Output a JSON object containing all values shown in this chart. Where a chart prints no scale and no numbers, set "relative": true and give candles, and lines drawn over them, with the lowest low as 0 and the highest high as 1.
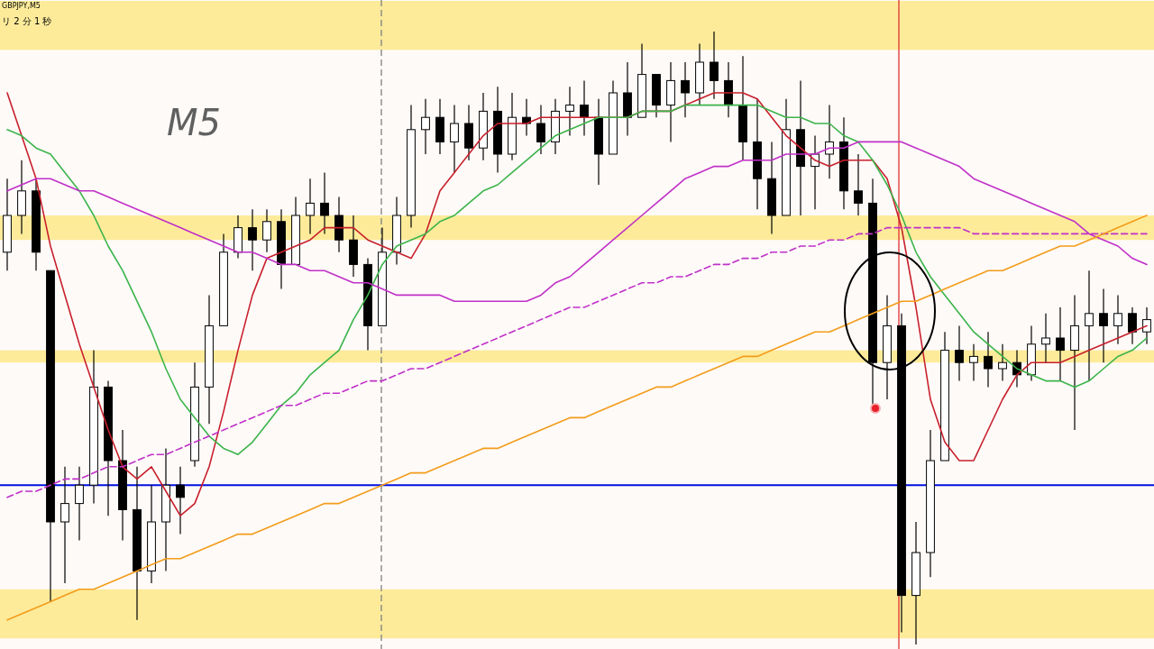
{
  "chart_data": {
    "type": "candlestick",
    "title": "GBPJPY,M5",
    "subtitle": "リ 2 分 1 秒",
    "annotations": [
      "M5"
    ],
    "relative": true,
    "categories": [
      null,
      null,
      null,
      null,
      null,
      null,
      null,
      null,
      null,
      null,
      null,
      null,
      null,
      null,
      null,
      null,
      null,
      null,
      null,
      null,
      null,
      null,
      null,
      null,
      null,
      null,
      null,
      null,
      null,
      null,
      null,
      null,
      null,
      null,
      null,
      null,
      null,
      null,
      null,
      null,
      null,
      null,
      null,
      null,
      null,
      null,
      null,
      null,
      null,
      null,
      null,
      null,
      null,
      null,
      null,
      null,
      null,
      null,
      null,
      null,
      null,
      null,
      null,
      null,
      null,
      null,
      null,
      null,
      null,
      null,
      null,
      null,
      null,
      null,
      null,
      null,
      null,
      null,
      null,
      null
    ],
    "ohlc": [
      [
        0.64,
        0.76,
        0.61,
        0.7
      ],
      [
        0.7,
        0.79,
        0.67,
        0.74
      ],
      [
        0.74,
        0.76,
        0.61,
        0.64
      ],
      [
        0.61,
        0.61,
        0.07,
        0.2
      ],
      [
        0.2,
        0.29,
        0.1,
        0.23
      ],
      [
        0.23,
        0.29,
        0.17,
        0.26
      ],
      [
        0.26,
        0.48,
        0.23,
        0.42
      ],
      [
        0.42,
        0.43,
        0.21,
        0.3
      ],
      [
        0.3,
        0.35,
        0.17,
        0.22
      ],
      [
        0.22,
        0.29,
        0.04,
        0.12
      ],
      [
        0.12,
        0.26,
        0.1,
        0.2
      ],
      [
        0.2,
        0.32,
        0.12,
        0.26
      ],
      [
        0.26,
        0.29,
        0.18,
        0.24
      ],
      [
        0.3,
        0.46,
        0.29,
        0.42
      ],
      [
        0.42,
        0.57,
        0.36,
        0.52
      ],
      [
        0.52,
        0.67,
        0.52,
        0.64
      ],
      [
        0.64,
        0.7,
        0.63,
        0.68
      ],
      [
        0.68,
        0.71,
        0.61,
        0.66
      ],
      [
        0.66,
        0.71,
        0.64,
        0.69
      ],
      [
        0.69,
        0.71,
        0.58,
        0.62
      ],
      [
        0.62,
        0.73,
        0.62,
        0.7
      ],
      [
        0.7,
        0.76,
        0.67,
        0.72
      ],
      [
        0.72,
        0.77,
        0.67,
        0.7
      ],
      [
        0.7,
        0.73,
        0.64,
        0.66
      ],
      [
        0.66,
        0.7,
        0.6,
        0.62
      ],
      [
        0.62,
        0.63,
        0.48,
        0.52
      ],
      [
        0.52,
        0.68,
        0.52,
        0.64
      ],
      [
        0.64,
        0.73,
        0.62,
        0.7
      ],
      [
        0.7,
        0.88,
        0.68,
        0.84
      ],
      [
        0.84,
        0.89,
        0.8,
        0.86
      ],
      [
        0.86,
        0.89,
        0.8,
        0.82
      ],
      [
        0.82,
        0.88,
        0.77,
        0.85
      ],
      [
        0.85,
        0.88,
        0.79,
        0.81
      ],
      [
        0.81,
        0.9,
        0.79,
        0.87
      ],
      [
        0.87,
        0.91,
        0.77,
        0.8
      ],
      [
        0.8,
        0.9,
        0.79,
        0.86
      ],
      [
        0.86,
        0.89,
        0.83,
        0.85
      ],
      [
        0.85,
        0.88,
        0.8,
        0.82
      ],
      [
        0.82,
        0.89,
        0.8,
        0.87
      ],
      [
        0.87,
        0.91,
        0.83,
        0.88
      ],
      [
        0.88,
        0.92,
        0.83,
        0.86
      ],
      [
        0.86,
        0.89,
        0.75,
        0.8
      ],
      [
        0.8,
        0.92,
        0.8,
        0.9
      ],
      [
        0.9,
        0.95,
        0.83,
        0.86
      ],
      [
        0.86,
        0.98,
        0.86,
        0.93
      ],
      [
        0.93,
        0.93,
        0.86,
        0.88
      ],
      [
        0.88,
        0.95,
        0.82,
        0.92
      ],
      [
        0.92,
        0.95,
        0.86,
        0.9
      ],
      [
        0.9,
        0.98,
        0.88,
        0.95
      ],
      [
        0.95,
        1.0,
        0.89,
        0.92
      ],
      [
        0.92,
        0.95,
        0.86,
        0.88
      ],
      [
        0.88,
        0.96,
        0.79,
        0.82
      ],
      [
        0.82,
        0.89,
        0.71,
        0.76
      ],
      [
        0.76,
        0.82,
        0.67,
        0.7
      ],
      [
        0.7,
        0.89,
        0.7,
        0.84
      ],
      [
        0.84,
        0.92,
        0.7,
        0.78
      ],
      [
        0.78,
        0.83,
        0.71,
        0.8
      ],
      [
        0.8,
        0.88,
        0.76,
        0.82
      ],
      [
        0.82,
        0.86,
        0.71,
        0.74
      ],
      [
        0.74,
        0.8,
        0.7,
        0.72
      ],
      [
        0.72,
        0.76,
        0.39,
        0.46
      ],
      [
        0.46,
        0.57,
        0.4,
        0.52
      ],
      [
        0.52,
        0.54,
        0.02,
        0.08
      ],
      [
        0.08,
        0.2,
        0.0,
        0.15
      ],
      [
        0.15,
        0.35,
        0.11,
        0.3
      ],
      [
        0.3,
        0.51,
        0.3,
        0.48
      ],
      [
        0.48,
        0.52,
        0.43,
        0.46
      ],
      [
        0.46,
        0.49,
        0.43,
        0.47
      ],
      [
        0.47,
        0.51,
        0.42,
        0.45
      ],
      [
        0.45,
        0.49,
        0.43,
        0.46
      ],
      [
        0.46,
        0.48,
        0.42,
        0.44
      ],
      [
        0.44,
        0.52,
        0.43,
        0.49
      ],
      [
        0.49,
        0.54,
        0.46,
        0.5
      ],
      [
        0.5,
        0.55,
        0.43,
        0.48
      ],
      [
        0.48,
        0.57,
        0.35,
        0.52
      ],
      [
        0.52,
        0.61,
        0.43,
        0.54
      ],
      [
        0.54,
        0.58,
        0.46,
        0.52
      ],
      [
        0.52,
        0.57,
        0.49,
        0.54
      ],
      [
        0.54,
        0.55,
        0.49,
        0.51
      ],
      [
        0.51,
        0.55,
        0.49,
        0.53
      ]
    ],
    "series": [
      {
        "type": "line",
        "color": "#c8202c",
        "values": [
          0.9,
          0.83,
          0.76,
          0.65,
          0.57,
          0.49,
          0.42,
          0.35,
          0.29,
          0.27,
          0.29,
          0.25,
          0.21,
          0.23,
          0.29,
          0.38,
          0.48,
          0.57,
          0.63,
          0.64,
          0.65,
          0.66,
          0.68,
          0.68,
          0.68,
          0.66,
          0.65,
          0.64,
          0.63,
          0.67,
          0.74,
          0.77,
          0.8,
          0.83,
          0.85,
          0.85,
          0.85,
          0.86,
          0.86,
          0.86,
          0.86,
          0.86,
          0.86,
          0.86,
          0.87,
          0.87,
          0.87,
          0.88,
          0.89,
          0.9,
          0.9,
          0.9,
          0.89,
          0.86,
          0.83,
          0.81,
          0.79,
          0.78,
          0.79,
          0.79,
          0.79,
          0.76,
          0.68,
          0.55,
          0.4,
          0.33,
          0.3,
          0.3,
          0.35,
          0.4,
          0.44,
          0.46,
          0.46,
          0.46,
          0.47,
          0.48,
          0.49,
          0.5,
          0.51,
          0.52
        ]
      },
      {
        "type": "line",
        "color": "#3cb44b",
        "values": [
          0.84,
          0.83,
          0.81,
          0.8,
          0.77,
          0.74,
          0.7,
          0.65,
          0.61,
          0.56,
          0.51,
          0.45,
          0.4,
          0.37,
          0.34,
          0.32,
          0.31,
          0.33,
          0.36,
          0.39,
          0.41,
          0.44,
          0.46,
          0.48,
          0.53,
          0.57,
          0.62,
          0.65,
          0.66,
          0.67,
          0.69,
          0.7,
          0.72,
          0.74,
          0.75,
          0.77,
          0.79,
          0.81,
          0.83,
          0.84,
          0.85,
          0.86,
          0.86,
          0.86,
          0.87,
          0.87,
          0.87,
          0.88,
          0.88,
          0.88,
          0.88,
          0.88,
          0.88,
          0.87,
          0.86,
          0.86,
          0.85,
          0.85,
          0.83,
          0.82,
          0.79,
          0.75,
          0.7,
          0.64,
          0.6,
          0.57,
          0.54,
          0.51,
          0.49,
          0.47,
          0.45,
          0.44,
          0.43,
          0.43,
          0.42,
          0.43,
          0.45,
          0.47,
          0.48,
          0.5
        ]
      },
      {
        "type": "line",
        "color": "#c030c8",
        "values": [
          0.74,
          0.75,
          0.76,
          0.76,
          0.75,
          0.74,
          0.74,
          0.73,
          0.72,
          0.71,
          0.7,
          0.69,
          0.68,
          0.67,
          0.66,
          0.65,
          0.64,
          0.64,
          0.63,
          0.62,
          0.62,
          0.61,
          0.61,
          0.6,
          0.59,
          0.59,
          0.58,
          0.57,
          0.57,
          0.57,
          0.57,
          0.56,
          0.56,
          0.56,
          0.56,
          0.56,
          0.56,
          0.57,
          0.59,
          0.6,
          0.62,
          0.64,
          0.66,
          0.68,
          0.7,
          0.72,
          0.74,
          0.76,
          0.77,
          0.78,
          0.78,
          0.79,
          0.79,
          0.79,
          0.8,
          0.8,
          0.8,
          0.81,
          0.81,
          0.82,
          0.82,
          0.82,
          0.82,
          0.81,
          0.8,
          0.79,
          0.78,
          0.76,
          0.75,
          0.74,
          0.73,
          0.72,
          0.71,
          0.7,
          0.69,
          0.67,
          0.66,
          0.65,
          0.63,
          0.62
        ]
      },
      {
        "type": "line",
        "color": "#c030c8",
        "line_style": "dashed",
        "values": [
          0.24,
          0.25,
          0.25,
          0.26,
          0.27,
          0.27,
          0.28,
          0.29,
          0.29,
          0.3,
          0.31,
          0.31,
          0.32,
          0.33,
          0.34,
          0.35,
          0.36,
          0.37,
          0.38,
          0.39,
          0.39,
          0.4,
          0.41,
          0.41,
          0.42,
          0.43,
          0.43,
          0.44,
          0.45,
          0.45,
          0.46,
          0.47,
          0.48,
          0.49,
          0.5,
          0.51,
          0.52,
          0.53,
          0.54,
          0.55,
          0.55,
          0.56,
          0.57,
          0.58,
          0.59,
          0.59,
          0.6,
          0.6,
          0.61,
          0.62,
          0.62,
          0.63,
          0.63,
          0.64,
          0.64,
          0.65,
          0.65,
          0.66,
          0.66,
          0.67,
          0.67,
          0.68,
          0.68,
          0.68,
          0.68,
          0.68,
          0.68,
          0.67,
          0.67,
          0.67,
          0.67,
          0.67,
          0.67,
          0.67,
          0.67,
          0.67,
          0.67,
          0.67,
          0.67,
          0.67
        ]
      },
      {
        "type": "line",
        "color": "#f39c1a",
        "values": [
          0.04,
          0.05,
          0.06,
          0.07,
          0.08,
          0.09,
          0.09,
          0.1,
          0.11,
          0.12,
          0.13,
          0.14,
          0.14,
          0.15,
          0.16,
          0.17,
          0.18,
          0.18,
          0.19,
          0.2,
          0.21,
          0.22,
          0.23,
          0.23,
          0.24,
          0.25,
          0.26,
          0.27,
          0.28,
          0.28,
          0.29,
          0.3,
          0.31,
          0.32,
          0.32,
          0.33,
          0.34,
          0.35,
          0.36,
          0.37,
          0.37,
          0.38,
          0.39,
          0.4,
          0.41,
          0.42,
          0.42,
          0.43,
          0.44,
          0.45,
          0.46,
          0.47,
          0.47,
          0.48,
          0.49,
          0.5,
          0.51,
          0.51,
          0.52,
          0.53,
          0.54,
          0.55,
          0.56,
          0.56,
          0.57,
          0.58,
          0.59,
          0.6,
          0.61,
          0.61,
          0.62,
          0.63,
          0.64,
          0.65,
          0.65,
          0.66,
          0.67,
          0.68,
          0.69,
          0.7
        ]
      }
    ],
    "ref_lines": [
      {
        "axis": "y",
        "value": 0.26,
        "color": "#0010e0"
      }
    ],
    "bands": [
      {
        "axis": "y",
        "from": 0.97,
        "to": 1.05,
        "color": "#fdeb9a"
      },
      {
        "axis": "y",
        "from": 0.66,
        "to": 0.7,
        "color": "#fdeb9a"
      },
      {
        "axis": "y",
        "from": 0.46,
        "to": 0.48,
        "color": "#fdeb9a"
      },
      {
        "axis": "y",
        "from": 0.01,
        "to": 0.09,
        "color": "#fdeb9a"
      }
    ]
  }
}
